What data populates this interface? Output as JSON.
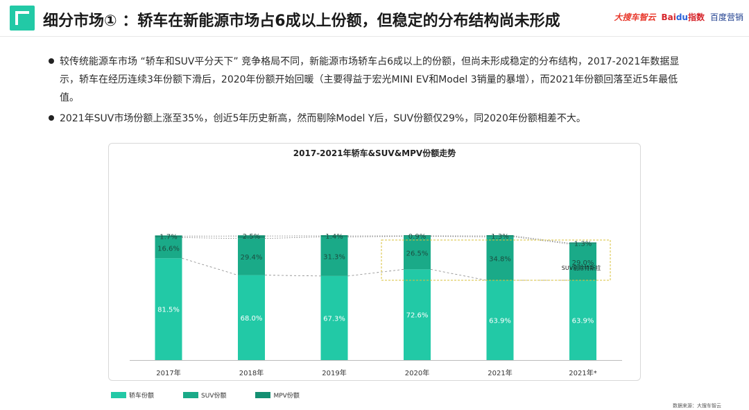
{
  "header": {
    "title": "细分市场① ：轿车在新能源市场占6成以上份额，但稳定的分布结构尚未形成",
    "brand_logos": [
      "大搜车智云",
      "Bai",
      "du",
      "指数",
      "百度营销"
    ]
  },
  "bullets": [
    "较传统能源车市场 “轿车和SUV平分天下” 竞争格局不同，新能源市场轿车占6成以上的份额，但尚未形成稳定的分布结构，2017-2021年数据显示，轿车在经历连续3年份额下滑后，2020年份额开始回暖（主要得益于宏光MINI EV和Model 3销量的暴增），而2021年份额回落至近5年最低值。",
    "2021年SUV市场份额上涨至35%，创近5年历史新高，然而剔除Model Y后，SUV份额仅29%，同2020年份额相差不大。"
  ],
  "chart_data": {
    "type": "bar",
    "stacked": true,
    "title": "2017-2021年轿车&SUV&MPV份额走势",
    "categories": [
      "2017年",
      "2018年",
      "2019年",
      "2020年",
      "2021年",
      "2021年*"
    ],
    "series": [
      {
        "name": "轿车份额",
        "values": [
          81.5,
          68.0,
          67.3,
          72.6,
          63.9,
          63.9
        ],
        "labels": [
          "81.5%",
          "68.0%",
          "67.3%",
          "72.6%",
          "63.9%",
          "63.9%"
        ],
        "color": "#22c9a6"
      },
      {
        "name": "SUV份额",
        "values": [
          16.6,
          29.4,
          31.3,
          26.5,
          34.8,
          29.0
        ],
        "labels": [
          "16.6%",
          "29.4%",
          "31.3%",
          "26.5%",
          "34.8%",
          "29.0%"
        ],
        "color": "#1aaa88"
      },
      {
        "name": "MPV份额",
        "values": [
          1.7,
          2.5,
          1.4,
          0.9,
          1.3,
          1.3
        ],
        "labels": [
          "1.7%",
          "2.5%",
          "1.4%",
          "0.9%",
          "1.3%",
          "1.3%"
        ],
        "color": "#148f72"
      }
    ],
    "annotation": "SUV剔除特斯拉",
    "ylim": [
      0,
      100
    ],
    "legend_position": "bottom-left",
    "grid": false
  },
  "footer": {
    "source": "数据来源：大搜车智云"
  }
}
